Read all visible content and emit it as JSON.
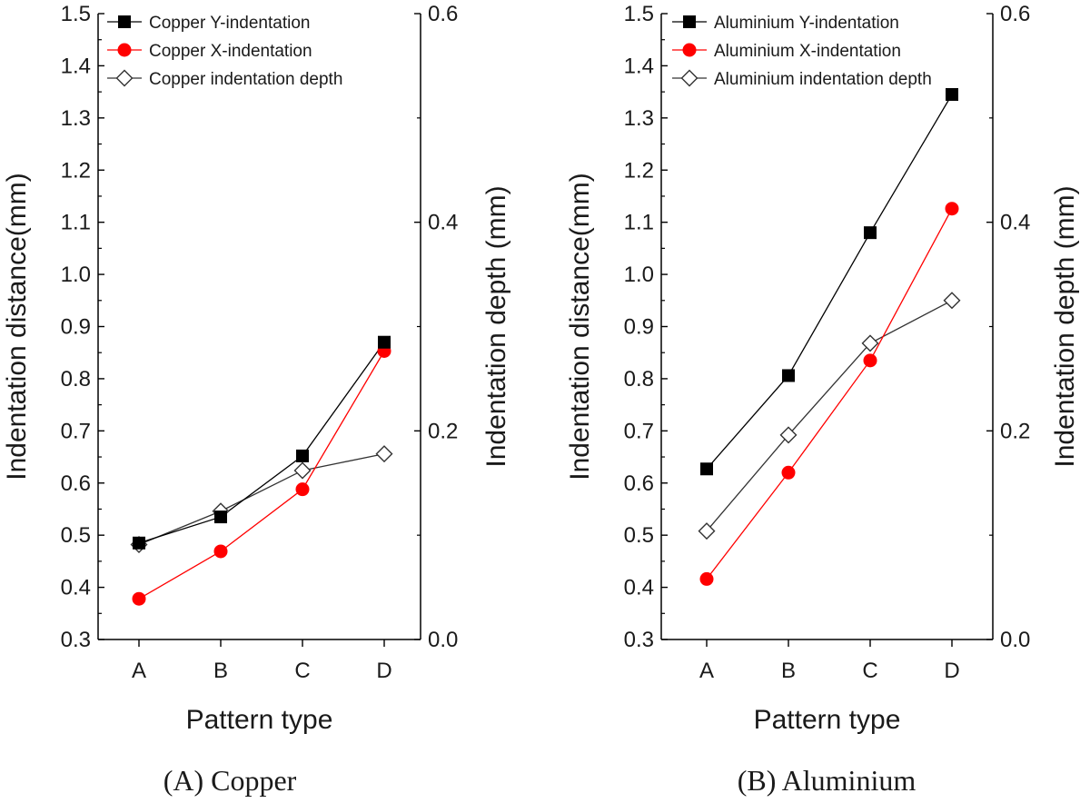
{
  "chart_data": [
    {
      "type": "line",
      "panel": "copper",
      "caption": "(A) Copper",
      "categories": [
        "A",
        "B",
        "C",
        "D"
      ],
      "xlabel": "Pattern type",
      "ylabel": "Indentation distance(mm)",
      "y2label": "Indentation depth (mm)",
      "ylim": [
        0.3,
        1.5
      ],
      "y2lim": [
        0.0,
        0.6
      ],
      "yticks": [
        "0.3",
        "0.4",
        "0.5",
        "0.6",
        "0.7",
        "0.8",
        "0.9",
        "1.0",
        "1.1",
        "1.2",
        "1.3",
        "1.4",
        "1.5"
      ],
      "y2ticks": [
        "0.0",
        "0.2",
        "0.4",
        "0.6"
      ],
      "legend_position": "top-left",
      "grid": false,
      "series": [
        {
          "name": "Copper  Y-indentation",
          "axis": "left",
          "marker": "square",
          "color": "#000000",
          "values": [
            0.485,
            0.535,
            0.652,
            0.87
          ]
        },
        {
          "name": "Copper  X-indentation",
          "axis": "left",
          "marker": "circle",
          "color": "#ff0000",
          "values": [
            0.378,
            0.469,
            0.588,
            0.853
          ]
        },
        {
          "name": "Copper indentation depth",
          "axis": "right",
          "marker": "diamond",
          "color": "#333333",
          "values": [
            0.091,
            0.123,
            0.162,
            0.178
          ]
        }
      ]
    },
    {
      "type": "line",
      "panel": "aluminium",
      "caption": "(B) Aluminium",
      "categories": [
        "A",
        "B",
        "C",
        "D"
      ],
      "xlabel": "Pattern type",
      "ylabel": "Indentation distance(mm)",
      "y2label": "Indentation depth (mm)",
      "ylim": [
        0.3,
        1.5
      ],
      "y2lim": [
        0.0,
        0.6
      ],
      "yticks": [
        "0.3",
        "0.4",
        "0.5",
        "0.6",
        "0.7",
        "0.8",
        "0.9",
        "1.0",
        "1.1",
        "1.2",
        "1.3",
        "1.4",
        "1.5"
      ],
      "y2ticks": [
        "0.0",
        "0.2",
        "0.4",
        "0.6"
      ],
      "legend_position": "top-left",
      "grid": false,
      "series": [
        {
          "name": "Aluminium  Y-indentation",
          "axis": "left",
          "marker": "square",
          "color": "#000000",
          "values": [
            0.627,
            0.806,
            1.08,
            1.345
          ]
        },
        {
          "name": "Aluminium X-indentation",
          "axis": "left",
          "marker": "circle",
          "color": "#ff0000",
          "values": [
            0.416,
            0.62,
            0.835,
            1.126
          ]
        },
        {
          "name": "Aluminium indentation depth",
          "axis": "right",
          "marker": "diamond",
          "color": "#333333",
          "values": [
            0.104,
            0.196,
            0.284,
            0.325
          ]
        }
      ]
    }
  ]
}
